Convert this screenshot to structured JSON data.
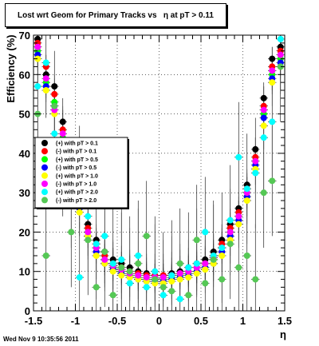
{
  "page": {
    "title": "Lost wrt Geom for Primary Tracks vs   η at pT > 0.11",
    "timestamp": "Wed Nov  9 10:35:56 2011"
  },
  "chart_data": {
    "type": "scatter",
    "title": "Lost wrt Geom for Primary Tracks vs   η at pT > 0.11",
    "xlabel": "η",
    "ylabel": "Efficiency (%)",
    "xlim": [
      -1.5,
      1.5
    ],
    "ylim": [
      0,
      70
    ],
    "x_ticks": [
      "-1.5",
      "-1",
      "-0.5",
      "0",
      "0.5",
      "1",
      "1.5"
    ],
    "y_ticks": [
      "0",
      "10",
      "20",
      "30",
      "40",
      "50",
      "60",
      "70"
    ],
    "grid": true,
    "legend_position": "middle-left",
    "x": [
      -1.45,
      -1.35,
      -1.25,
      -1.15,
      -1.05,
      -0.95,
      -0.85,
      -0.75,
      -0.65,
      -0.55,
      -0.45,
      -0.35,
      -0.25,
      -0.15,
      -0.05,
      0.05,
      0.15,
      0.25,
      0.35,
      0.45,
      0.55,
      0.65,
      0.75,
      0.85,
      0.95,
      1.05,
      1.15,
      1.25,
      1.35,
      1.45
    ],
    "series": [
      {
        "name": "(+) with pT > 0.1",
        "color": "#000000",
        "values": [
          69,
          60,
          57,
          48,
          38,
          29,
          22,
          18,
          15,
          13,
          12,
          11,
          10,
          9.5,
          9,
          9,
          9.5,
          10,
          11,
          12,
          13,
          15,
          18,
          22,
          26,
          32,
          41,
          54,
          64,
          67
        ]
      },
      {
        "name": "(-) with pT > 0.1",
        "color": "#ff0000",
        "values": [
          68,
          62,
          55,
          46,
          36,
          28,
          21,
          17,
          14,
          12,
          11,
          10,
          9.5,
          9,
          9,
          9,
          9,
          9.5,
          10,
          11,
          12,
          14,
          17,
          21,
          25,
          31,
          39,
          52,
          62,
          66
        ]
      },
      {
        "name": "(+) with pT > 0.5",
        "color": "#00ff00",
        "values": [
          66,
          58,
          53,
          44,
          35,
          27,
          20,
          16,
          13,
          11,
          10,
          9,
          8.5,
          8,
          8,
          8,
          8.5,
          9,
          9.5,
          10,
          11,
          13,
          16,
          20,
          24,
          30,
          38,
          50,
          60,
          64
        ]
      },
      {
        "name": "(-) with pT > 0.5",
        "color": "#0000ff",
        "values": [
          65,
          57,
          52,
          43,
          34,
          26,
          19,
          15,
          12,
          10.5,
          9.5,
          8.5,
          8,
          7.5,
          7.5,
          7.5,
          8,
          8.5,
          9,
          10,
          11,
          12,
          15,
          19,
          23,
          29,
          37,
          49,
          59,
          63
        ]
      },
      {
        "name": "(+) with pT > 1.0",
        "color": "#ffff00",
        "values": [
          64,
          56,
          50,
          42,
          33,
          25,
          19,
          14,
          12,
          10,
          9,
          8.5,
          8,
          7.5,
          7,
          7,
          7.5,
          8,
          8.5,
          9.5,
          10.5,
          12,
          14,
          18,
          22,
          28,
          36,
          47,
          58,
          62
        ]
      },
      {
        "name": "(-) with pT > 1.0",
        "color": "#ff00ff",
        "values": [
          67,
          59,
          51,
          45,
          35,
          27,
          20,
          16,
          13,
          11.5,
          10.5,
          9.5,
          9,
          8.5,
          8.5,
          8.5,
          9,
          9.5,
          10,
          11,
          12,
          13.5,
          16,
          20,
          24,
          30,
          38,
          51,
          61,
          65
        ]
      },
      {
        "name": "(+) with pT > 2.0",
        "color": "#00ffff",
        "values": [
          57,
          63,
          45,
          40,
          30,
          8.5,
          24,
          17,
          19,
          12,
          13,
          7,
          14,
          6,
          10,
          4,
          9,
          3,
          11,
          12,
          20,
          14,
          16,
          23,
          39,
          31,
          35,
          44,
          48,
          69
        ]
      },
      {
        "name": "(-) with pT > 2.0",
        "color": "#55c855",
        "values": [
          50,
          14,
          52,
          38,
          20,
          33,
          18,
          6,
          15,
          4,
          11,
          10,
          12,
          19,
          8,
          6,
          5,
          12,
          4,
          18,
          7,
          13,
          8,
          17,
          11,
          14,
          8,
          30,
          33,
          62
        ]
      }
    ]
  }
}
